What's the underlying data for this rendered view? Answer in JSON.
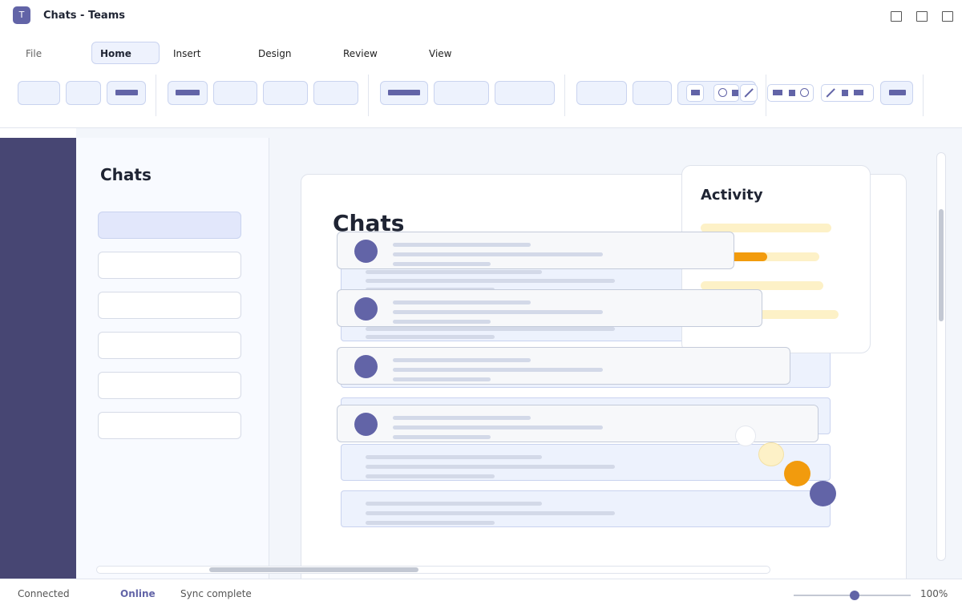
{
  "window": {
    "title": "Chats - Teams",
    "app_icon_letter": "T"
  },
  "menu": {
    "items": [
      {
        "label": "File",
        "state": "muted"
      },
      {
        "label": "Home",
        "state": "active"
      },
      {
        "label": "Insert",
        "state": "normal"
      },
      {
        "label": "Design",
        "state": "normal"
      },
      {
        "label": "Review",
        "state": "normal"
      },
      {
        "label": "View",
        "state": "normal"
      }
    ]
  },
  "left_pane": {
    "title": "Chats"
  },
  "main": {
    "title": "Chats"
  },
  "activity": {
    "title": "Activity",
    "bars": [
      {
        "level": 0.0
      },
      {
        "level": 0.56
      },
      {
        "level": 0.0
      },
      {
        "level": 0.0
      }
    ]
  },
  "status": {
    "connection": "Connected",
    "presence": "Online",
    "sync": "Sync complete",
    "zoom": "100%"
  },
  "colors": {
    "accent": "#6264a7",
    "rail": "#474673",
    "warning": "#f29b0d",
    "warning_light": "#fdf1c7"
  }
}
